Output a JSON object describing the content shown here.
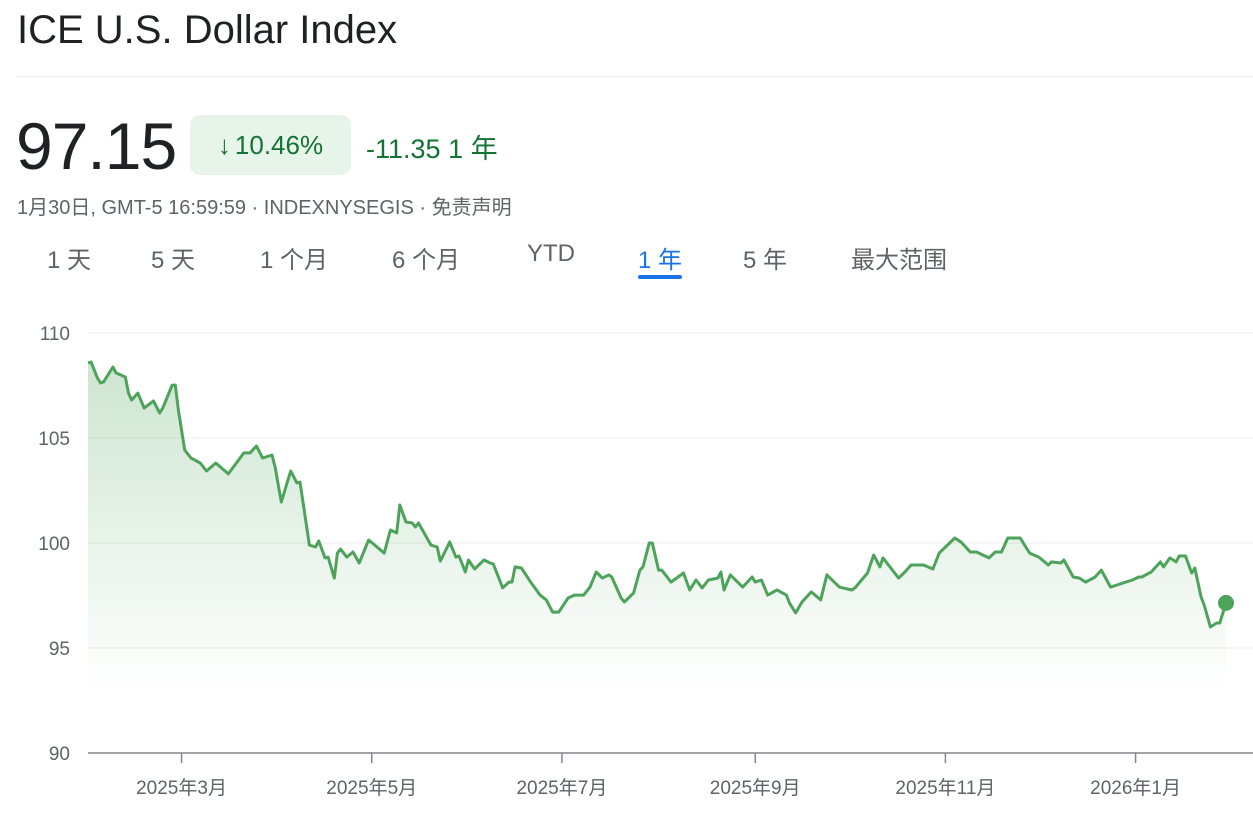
{
  "title": "ICE U.S. Dollar Index",
  "quote": {
    "price": "97.15",
    "change_percent": "10.46%",
    "change_direction_icon": "arrow-down-icon",
    "change_value": "-11.35",
    "change_period": "1 年",
    "subline": "1月30日, GMT-5 16:59:59 · INDEXNYSEGIS · 免责声明"
  },
  "colors": {
    "positive_bg": "#e6f4ea",
    "change_text": "#137333",
    "line": "#4ea35b",
    "accent": "#1a73e8"
  },
  "tabs": [
    {
      "label": "1 天"
    },
    {
      "label": "5 天"
    },
    {
      "label": "1 个月"
    },
    {
      "label": "6 个月"
    },
    {
      "label": "YTD"
    },
    {
      "label": "1 年",
      "active": true
    },
    {
      "label": "5 年"
    },
    {
      "label": "最大范围"
    }
  ],
  "chart_data": {
    "type": "area",
    "ylim": [
      90,
      110
    ],
    "yticks": [
      "110",
      "105",
      "100",
      "95",
      "90"
    ],
    "xtick_labels": [
      "2025年3月",
      "2025年5月",
      "2025年7月",
      "2025年9月",
      "2025年11月",
      "2026年1月"
    ],
    "xtick_dates": [
      "2025-03-01",
      "2025-05-01",
      "2025-07-01",
      "2025-09-01",
      "2025-11-01",
      "2026-01-01"
    ],
    "xlim": [
      "2025-01-30",
      "2026-01-30"
    ],
    "grid": true,
    "series": [
      {
        "points": [
          [
            "2025-01-30",
            108.57
          ],
          [
            "2025-01-31",
            108.62
          ],
          [
            "2025-02-02",
            107.86
          ],
          [
            "2025-02-03",
            107.62
          ],
          [
            "2025-02-04",
            107.67
          ],
          [
            "2025-02-07",
            108.38
          ],
          [
            "2025-02-08",
            108.1
          ],
          [
            "2025-02-11",
            107.9
          ],
          [
            "2025-02-12",
            107.14
          ],
          [
            "2025-02-13",
            106.81
          ],
          [
            "2025-02-15",
            107.14
          ],
          [
            "2025-02-17",
            106.43
          ],
          [
            "2025-02-20",
            106.76
          ],
          [
            "2025-02-22",
            106.19
          ],
          [
            "2025-02-23",
            106.43
          ],
          [
            "2025-02-26",
            107.52
          ],
          [
            "2025-02-27",
            107.52
          ],
          [
            "2025-02-28",
            106.33
          ],
          [
            "2025-03-02",
            104.43
          ],
          [
            "2025-03-04",
            104.05
          ],
          [
            "2025-03-07",
            103.81
          ],
          [
            "2025-03-09",
            103.43
          ],
          [
            "2025-03-12",
            103.81
          ],
          [
            "2025-03-16",
            103.29
          ],
          [
            "2025-03-21",
            104.29
          ],
          [
            "2025-03-23",
            104.29
          ],
          [
            "2025-03-25",
            104.62
          ],
          [
            "2025-03-27",
            104.05
          ],
          [
            "2025-03-30",
            104.19
          ],
          [
            "2025-03-31",
            103.62
          ],
          [
            "2025-04-02",
            101.95
          ],
          [
            "2025-04-05",
            103.43
          ],
          [
            "2025-04-07",
            102.86
          ],
          [
            "2025-04-08",
            102.9
          ],
          [
            "2025-04-11",
            99.9
          ],
          [
            "2025-04-13",
            99.81
          ],
          [
            "2025-04-14",
            100.1
          ],
          [
            "2025-04-16",
            99.29
          ],
          [
            "2025-04-17",
            99.33
          ],
          [
            "2025-04-19",
            98.33
          ],
          [
            "2025-04-20",
            99.52
          ],
          [
            "2025-04-21",
            99.71
          ],
          [
            "2025-04-23",
            99.33
          ],
          [
            "2025-04-25",
            99.57
          ],
          [
            "2025-04-27",
            99.05
          ],
          [
            "2025-04-30",
            100.14
          ],
          [
            "2025-05-02",
            99.9
          ],
          [
            "2025-05-05",
            99.52
          ],
          [
            "2025-05-07",
            100.62
          ],
          [
            "2025-05-09",
            100.48
          ],
          [
            "2025-05-10",
            101.81
          ],
          [
            "2025-05-12",
            101.0
          ],
          [
            "2025-05-14",
            100.95
          ],
          [
            "2025-05-15",
            100.76
          ],
          [
            "2025-05-16",
            100.95
          ],
          [
            "2025-05-20",
            99.9
          ],
          [
            "2025-05-22",
            99.81
          ],
          [
            "2025-05-23",
            99.14
          ],
          [
            "2025-05-26",
            100.05
          ],
          [
            "2025-05-28",
            99.33
          ],
          [
            "2025-05-29",
            99.38
          ],
          [
            "2025-05-31",
            98.62
          ],
          [
            "2025-06-01",
            99.19
          ],
          [
            "2025-06-03",
            98.76
          ],
          [
            "2025-06-06",
            99.19
          ],
          [
            "2025-06-08",
            99.05
          ],
          [
            "2025-06-09",
            99.0
          ],
          [
            "2025-06-12",
            97.86
          ],
          [
            "2025-06-14",
            98.14
          ],
          [
            "2025-06-15",
            98.14
          ],
          [
            "2025-06-16",
            98.86
          ],
          [
            "2025-06-18",
            98.81
          ],
          [
            "2025-06-21",
            98.14
          ],
          [
            "2025-06-24",
            97.52
          ],
          [
            "2025-06-26",
            97.29
          ],
          [
            "2025-06-28",
            96.71
          ],
          [
            "2025-06-30",
            96.71
          ],
          [
            "2025-07-03",
            97.38
          ],
          [
            "2025-07-05",
            97.52
          ],
          [
            "2025-07-08",
            97.52
          ],
          [
            "2025-07-10",
            97.9
          ],
          [
            "2025-07-12",
            98.62
          ],
          [
            "2025-07-14",
            98.33
          ],
          [
            "2025-07-16",
            98.48
          ],
          [
            "2025-07-17",
            98.38
          ],
          [
            "2025-07-20",
            97.38
          ],
          [
            "2025-07-21",
            97.19
          ],
          [
            "2025-07-24",
            97.62
          ],
          [
            "2025-07-26",
            98.71
          ],
          [
            "2025-07-27",
            98.86
          ],
          [
            "2025-07-29",
            100.0
          ],
          [
            "2025-07-30",
            100.0
          ],
          [
            "2025-08-01",
            98.71
          ],
          [
            "2025-08-02",
            98.71
          ],
          [
            "2025-08-05",
            98.14
          ],
          [
            "2025-08-09",
            98.57
          ],
          [
            "2025-08-11",
            97.76
          ],
          [
            "2025-08-13",
            98.24
          ],
          [
            "2025-08-15",
            97.86
          ],
          [
            "2025-08-17",
            98.24
          ],
          [
            "2025-08-20",
            98.33
          ],
          [
            "2025-08-21",
            98.62
          ],
          [
            "2025-08-22",
            97.76
          ],
          [
            "2025-08-24",
            98.48
          ],
          [
            "2025-08-28",
            97.9
          ],
          [
            "2025-08-31",
            98.38
          ],
          [
            "2025-09-01",
            98.14
          ],
          [
            "2025-09-03",
            98.24
          ],
          [
            "2025-09-05",
            97.52
          ],
          [
            "2025-09-08",
            97.76
          ],
          [
            "2025-09-11",
            97.52
          ],
          [
            "2025-09-12",
            97.14
          ],
          [
            "2025-09-14",
            96.67
          ],
          [
            "2025-09-16",
            97.19
          ],
          [
            "2025-09-19",
            97.67
          ],
          [
            "2025-09-22",
            97.29
          ],
          [
            "2025-09-24",
            98.48
          ],
          [
            "2025-09-28",
            97.9
          ],
          [
            "2025-10-02",
            97.76
          ],
          [
            "2025-10-03",
            97.86
          ],
          [
            "2025-10-07",
            98.57
          ],
          [
            "2025-10-09",
            99.43
          ],
          [
            "2025-10-11",
            98.86
          ],
          [
            "2025-10-12",
            99.29
          ],
          [
            "2025-10-17",
            98.33
          ],
          [
            "2025-10-19",
            98.62
          ],
          [
            "2025-10-21",
            98.95
          ],
          [
            "2025-10-25",
            98.95
          ],
          [
            "2025-10-28",
            98.76
          ],
          [
            "2025-10-30",
            99.52
          ],
          [
            "2025-11-04",
            100.24
          ],
          [
            "2025-11-06",
            100.05
          ],
          [
            "2025-11-09",
            99.57
          ],
          [
            "2025-11-11",
            99.57
          ],
          [
            "2025-11-13",
            99.43
          ],
          [
            "2025-11-15",
            99.29
          ],
          [
            "2025-11-17",
            99.57
          ],
          [
            "2025-11-19",
            99.57
          ],
          [
            "2025-11-21",
            100.24
          ],
          [
            "2025-11-25",
            100.24
          ],
          [
            "2025-11-28",
            99.52
          ],
          [
            "2025-12-01",
            99.33
          ],
          [
            "2025-12-04",
            98.95
          ],
          [
            "2025-12-05",
            99.1
          ],
          [
            "2025-12-08",
            99.05
          ],
          [
            "2025-12-09",
            99.19
          ],
          [
            "2025-12-12",
            98.38
          ],
          [
            "2025-12-14",
            98.33
          ],
          [
            "2025-12-16",
            98.14
          ],
          [
            "2025-12-19",
            98.38
          ],
          [
            "2025-12-21",
            98.71
          ],
          [
            "2025-12-24",
            97.9
          ],
          [
            "2025-12-26",
            98.0
          ],
          [
            "2025-12-28",
            98.1
          ],
          [
            "2025-12-31",
            98.24
          ],
          [
            "2026-01-02",
            98.38
          ],
          [
            "2026-01-03",
            98.38
          ],
          [
            "2026-01-06",
            98.62
          ],
          [
            "2026-01-09",
            99.1
          ],
          [
            "2026-01-10",
            98.86
          ],
          [
            "2026-01-12",
            99.29
          ],
          [
            "2026-01-14",
            99.1
          ],
          [
            "2026-01-15",
            99.38
          ],
          [
            "2026-01-17",
            99.38
          ],
          [
            "2026-01-19",
            98.57
          ],
          [
            "2026-01-20",
            98.81
          ],
          [
            "2026-01-22",
            97.43
          ],
          [
            "2026-01-23",
            97.05
          ],
          [
            "2026-01-25",
            96.0
          ],
          [
            "2026-01-27",
            96.19
          ],
          [
            "2026-01-28",
            96.19
          ],
          [
            "2026-01-29",
            96.67
          ],
          [
            "2026-01-30",
            97.15
          ]
        ]
      }
    ]
  }
}
